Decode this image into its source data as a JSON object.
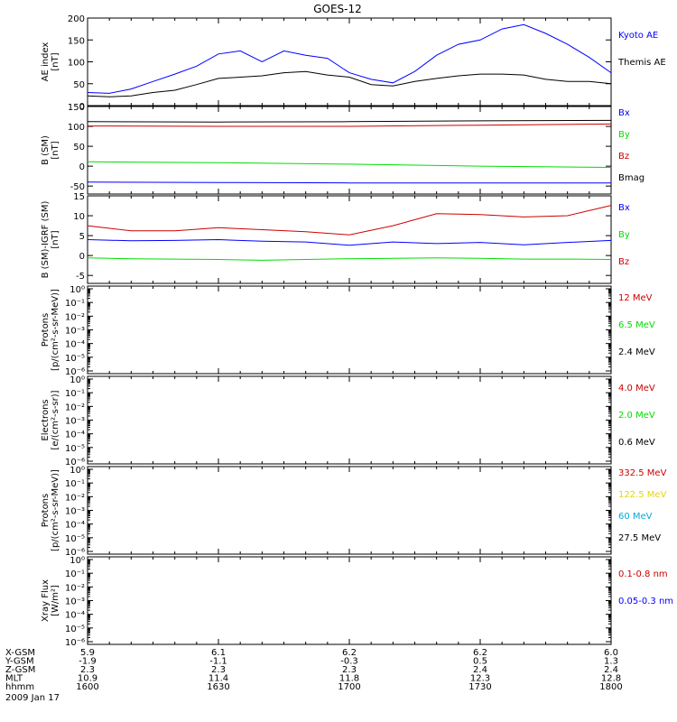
{
  "title": "GOES-12",
  "colors": {
    "black": "#000000",
    "blue": "#0000ff",
    "red": "#cc0000",
    "green": "#00dd00",
    "yellow": "#e6d600",
    "cyan": "#00aadd"
  },
  "chart_data": [
    {
      "type": "line",
      "ylabel": [
        "AE index",
        "[nT]"
      ],
      "ylim": [
        0,
        200
      ],
      "yticks": [
        "0",
        "50",
        "100",
        "150",
        "200"
      ],
      "series": [
        {
          "name": "Kyoto AE",
          "color": "#0000ff",
          "x": [
            1600,
            1605,
            1610,
            1615,
            1620,
            1625,
            1630,
            1635,
            1640,
            1645,
            1650,
            1655,
            1700,
            1705,
            1710,
            1715,
            1720,
            1725,
            1730,
            1735,
            1740,
            1745,
            1750,
            1755,
            1800
          ],
          "y": [
            30,
            28,
            38,
            55,
            72,
            90,
            118,
            125,
            100,
            125,
            115,
            108,
            75,
            60,
            52,
            78,
            115,
            140,
            150,
            175,
            185,
            165,
            140,
            110,
            75
          ]
        },
        {
          "name": "Themis AE",
          "color": "#000000",
          "x": [
            1600,
            1605,
            1610,
            1615,
            1620,
            1625,
            1630,
            1635,
            1640,
            1645,
            1650,
            1655,
            1700,
            1705,
            1710,
            1715,
            1720,
            1725,
            1730,
            1735,
            1740,
            1745,
            1750,
            1755,
            1800
          ],
          "y": [
            22,
            20,
            22,
            30,
            35,
            48,
            62,
            65,
            68,
            75,
            78,
            70,
            65,
            48,
            45,
            55,
            62,
            68,
            72,
            72,
            70,
            60,
            55,
            55,
            50
          ]
        }
      ]
    },
    {
      "type": "line",
      "ylabel": [
        "B (SM)",
        "[nT]"
      ],
      "ylim": [
        -70,
        150
      ],
      "yticks": [
        "-50",
        "0",
        "50",
        "100",
        "150"
      ],
      "series": [
        {
          "name": "Bx",
          "color": "#0000ff",
          "x": [
            1600,
            1630,
            1700,
            1730,
            1800
          ],
          "y": [
            -40,
            -41,
            -42,
            -42,
            -42
          ]
        },
        {
          "name": "By",
          "color": "#00dd00",
          "x": [
            1600,
            1630,
            1700,
            1730,
            1800
          ],
          "y": [
            11,
            9,
            5,
            0,
            -3
          ]
        },
        {
          "name": "Bz",
          "color": "#cc0000",
          "x": [
            1600,
            1630,
            1700,
            1730,
            1800
          ],
          "y": [
            101,
            100,
            100,
            103,
            106
          ]
        },
        {
          "name": "Bmag",
          "color": "#000000",
          "x": [
            1600,
            1630,
            1700,
            1730,
            1800
          ],
          "y": [
            112,
            111,
            112,
            114,
            115
          ]
        }
      ]
    },
    {
      "type": "line",
      "ylabel": [
        "B (SM)-IGRF (SM)",
        "[nT]"
      ],
      "ylim": [
        -7,
        15
      ],
      "yticks": [
        "-5",
        "0",
        "5",
        "10",
        "15"
      ],
      "series": [
        {
          "name": "Bx",
          "color": "#0000ff",
          "x": [
            1600,
            1610,
            1620,
            1630,
            1640,
            1650,
            1700,
            1710,
            1720,
            1730,
            1740,
            1750,
            1800
          ],
          "y": [
            4,
            3.7,
            3.8,
            4,
            3.6,
            3.4,
            2.6,
            3.4,
            3,
            3.3,
            2.7,
            3.3,
            3.8
          ]
        },
        {
          "name": "By",
          "color": "#00dd00",
          "x": [
            1600,
            1610,
            1620,
            1630,
            1640,
            1650,
            1700,
            1710,
            1720,
            1730,
            1740,
            1750,
            1800
          ],
          "y": [
            -0.6,
            -0.8,
            -0.9,
            -1,
            -1.2,
            -1,
            -0.8,
            -0.7,
            -0.6,
            -0.7,
            -0.9,
            -0.9,
            -1
          ]
        },
        {
          "name": "Bz",
          "color": "#cc0000",
          "x": [
            1600,
            1610,
            1620,
            1630,
            1640,
            1650,
            1700,
            1710,
            1720,
            1730,
            1740,
            1750,
            1800
          ],
          "y": [
            7.5,
            6.2,
            6.2,
            7,
            6.5,
            6,
            5.2,
            7.5,
            10.5,
            10.3,
            9.7,
            10,
            12.6
          ]
        }
      ]
    },
    {
      "type": "line",
      "ylabel": [
        "Protons",
        "[p/(cm²-s-sr-MeV)]"
      ],
      "scale": "log",
      "yticks": [
        "10⁰",
        "10⁻¹",
        "10⁻²",
        "10⁻³",
        "10⁻⁴",
        "10⁻⁵",
        "10⁻⁶"
      ],
      "series": [
        {
          "name": "12 MeV",
          "color": "#cc0000"
        },
        {
          "name": "6.5 MeV",
          "color": "#00dd00"
        },
        {
          "name": "2.4 MeV",
          "color": "#000000"
        }
      ]
    },
    {
      "type": "line",
      "ylabel": [
        "Electrons",
        "[e/(cm²-s-sr)]"
      ],
      "scale": "log",
      "yticks": [
        "10⁰",
        "10⁻¹",
        "10⁻²",
        "10⁻³",
        "10⁻⁴",
        "10⁻⁵",
        "10⁻⁶"
      ],
      "series": [
        {
          "name": "4.0 MeV",
          "color": "#cc0000"
        },
        {
          "name": "2.0 MeV",
          "color": "#00dd00"
        },
        {
          "name": "0.6 MeV",
          "color": "#000000"
        }
      ]
    },
    {
      "type": "line",
      "ylabel": [
        "Protons",
        "[p/(cm²-s-sr-MeV)]"
      ],
      "scale": "log",
      "yticks": [
        "10⁰",
        "10⁻¹",
        "10⁻²",
        "10⁻³",
        "10⁻⁴",
        "10⁻⁵",
        "10⁻⁶"
      ],
      "series": [
        {
          "name": "332.5 MeV",
          "color": "#cc0000"
        },
        {
          "name": "122.5 MeV",
          "color": "#e6d600"
        },
        {
          "name": "60 MeV",
          "color": "#00aadd"
        },
        {
          "name": "27.5 MeV",
          "color": "#000000"
        }
      ]
    },
    {
      "type": "line",
      "ylabel": [
        "Xray Flux",
        "[W/m²]"
      ],
      "scale": "log",
      "yticks": [
        "10⁰",
        "10⁻¹",
        "10⁻²",
        "10⁻³",
        "10⁻⁴",
        "10⁻⁵",
        "10⁻⁶"
      ],
      "series": [
        {
          "name": "0.1-0.8 nm",
          "color": "#cc0000"
        },
        {
          "name": "0.05-0.3 nm",
          "color": "#0000ff"
        }
      ]
    }
  ],
  "xaxis": {
    "x": [
      1600,
      1630,
      1700,
      1730,
      1800
    ],
    "rows": [
      {
        "label": "X-GSM",
        "values": [
          "5.9",
          "6.1",
          "6.2",
          "6.2",
          "6.0"
        ]
      },
      {
        "label": "Y-GSM",
        "values": [
          "-1.9",
          "-1.1",
          "-0.3",
          "0.5",
          "1.3"
        ]
      },
      {
        "label": "Z-GSM",
        "values": [
          "2.3",
          "2.3",
          "2.3",
          "2.4",
          "2.4"
        ]
      },
      {
        "label": "MLT",
        "values": [
          "10.9",
          "11.4",
          "11.8",
          "12.3",
          "12.8"
        ]
      },
      {
        "label": "hhmm",
        "values": [
          "1600",
          "1630",
          "1700",
          "1730",
          "1800"
        ]
      }
    ],
    "date": "2009 Jan 17"
  }
}
